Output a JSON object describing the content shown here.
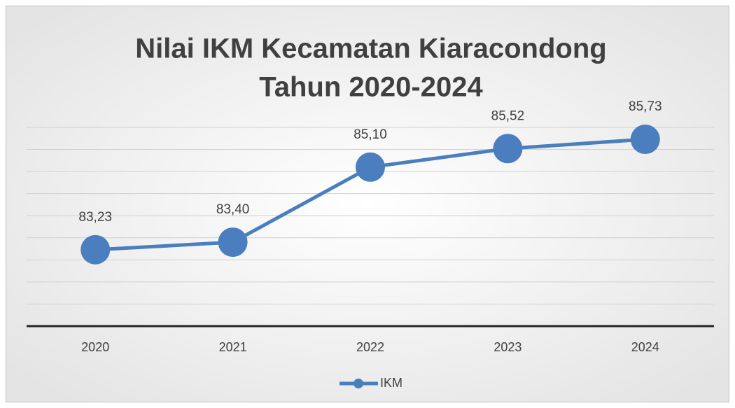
{
  "chart_data": {
    "type": "line",
    "title": [
      "Nilai IKM Kecamatan Kiaracondong",
      "Tahun 2020-2024"
    ],
    "categories": [
      "2020",
      "2021",
      "2022",
      "2023",
      "2024"
    ],
    "series": [
      {
        "name": "IKM",
        "color": "#4a7ebf",
        "values": [
          83.23,
          83.4,
          85.1,
          85.52,
          85.73
        ],
        "value_labels": [
          "83,23",
          "83,40",
          "85,10",
          "85,52",
          "85,73"
        ]
      }
    ],
    "ylim": [
      81.5,
      86
    ],
    "yticks": [
      81.5,
      82,
      82.5,
      83,
      83.5,
      84,
      84.5,
      85,
      85.5,
      86
    ],
    "ytick_labels": false,
    "grid": true,
    "legend": "bottom"
  }
}
